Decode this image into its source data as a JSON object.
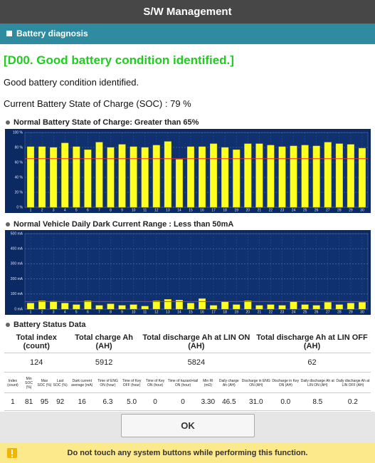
{
  "header": {
    "title": "S/W Management"
  },
  "section": {
    "title": "Battery diagnosis"
  },
  "result": {
    "heading": "[D00. Good battery condition identified.]",
    "message": "Good battery condition identified.",
    "soc_text": "Current Battery State of Charge (SOC) : 79 %"
  },
  "chart_data": [
    {
      "type": "bar",
      "title": "Normal Battery State of Charge: Greater than 65%",
      "categories": [
        1,
        2,
        3,
        4,
        5,
        6,
        7,
        8,
        9,
        10,
        11,
        12,
        13,
        14,
        15,
        16,
        17,
        18,
        19,
        20,
        21,
        22,
        23,
        24,
        25,
        26,
        27,
        28,
        29,
        30
      ],
      "values": [
        81,
        81,
        80,
        86,
        81,
        77,
        87,
        80,
        84,
        81,
        80,
        83,
        88,
        64,
        81,
        81,
        85,
        80,
        77,
        85,
        85,
        83,
        81,
        82,
        83,
        82,
        87,
        85,
        84,
        79
      ],
      "color": "#ffff22",
      "ylim": [
        0,
        100
      ],
      "yticks": [
        {
          "value": 0,
          "label": "0 %"
        },
        {
          "value": 20,
          "label": "20 %"
        },
        {
          "value": 40,
          "label": "40 %"
        },
        {
          "value": 60,
          "label": "60 %"
        },
        {
          "value": 80,
          "label": "80 %"
        },
        {
          "value": 100,
          "label": "100 %"
        }
      ],
      "threshold": 65,
      "threshold_color": "#e8302a",
      "grid": true
    },
    {
      "type": "bar",
      "title": "Normal Vehicle Daily Dark Current Range : Less than 50mA",
      "categories": [
        1,
        2,
        3,
        4,
        5,
        6,
        7,
        8,
        9,
        10,
        11,
        12,
        13,
        14,
        15,
        16,
        17,
        18,
        19,
        20,
        21,
        22,
        23,
        24,
        25,
        26,
        27,
        28,
        29,
        30
      ],
      "values": [
        40,
        55,
        52,
        40,
        30,
        55,
        25,
        35,
        25,
        30,
        20,
        55,
        65,
        60,
        40,
        70,
        25,
        50,
        30,
        55,
        25,
        30,
        25,
        50,
        30,
        25,
        45,
        30,
        40,
        45
      ],
      "color": "#ffff22",
      "ylim": [
        0,
        500
      ],
      "yticks": [
        {
          "value": 0,
          "label": "0 mA"
        },
        {
          "value": 100,
          "label": "100 mA"
        },
        {
          "value": 200,
          "label": "200 mA"
        },
        {
          "value": 300,
          "label": "300 mA"
        },
        {
          "value": 400,
          "label": "400 mA"
        },
        {
          "value": 500,
          "label": "500 mA"
        }
      ],
      "threshold": 50,
      "threshold_color": "#e8302a",
      "grid": true
    }
  ],
  "table": {
    "title": "Battery Status Data",
    "summary_header": [
      "Total index (count)",
      "Total charge Ah (AH)",
      "Total discharge Ah at LIN ON (AH)",
      "Total discharge Ah at LIN OFF (AH)"
    ],
    "summary_row": [
      "124",
      "5912",
      "5824",
      "62"
    ],
    "detail_header": [
      "Index (count)",
      "Min SOC (%)",
      "Max SOC (%)",
      "Last SOC (%)",
      "Dark current average (mA)",
      "Time of ENG ON (hour)",
      "Time of Key OFF (hour)",
      "Time of Key ON (hour)",
      "Time of hazard+tail ON (hour)",
      "Min RI (mΩ)",
      "Daily charge Ah (AH)",
      "Discharge in ENG ON (AH)",
      "Discharge in Key ON (AH)",
      "Daily discharge Ah at LIN ON (AH)",
      "Daily discharge Ah at LIN OFF (AH)"
    ],
    "detail_rows": [
      [
        "1",
        "81",
        "95",
        "92",
        "16",
        "6.3",
        "5.0",
        "0",
        "0",
        "3.30",
        "46.5",
        "31.0",
        "0.0",
        "8.5",
        "0.2"
      ]
    ]
  },
  "buttons": {
    "ok": "OK"
  },
  "footer": {
    "warning": "Do not touch any system buttons while performing this function."
  }
}
